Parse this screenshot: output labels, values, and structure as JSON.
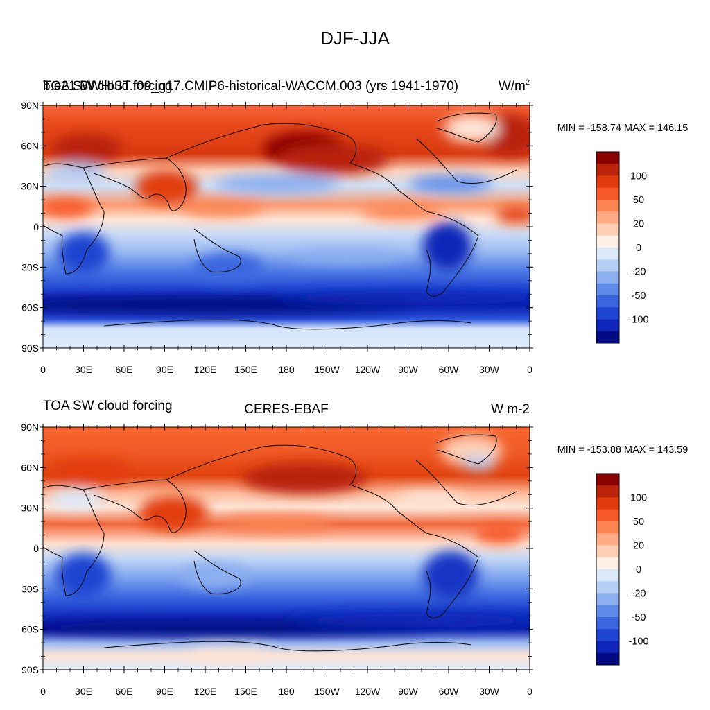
{
  "figure_title": "DJF-JJA",
  "panels": [
    {
      "id": "model",
      "left_title": "TOA SW cloud forcing",
      "left_title_overlap": "b.e21.BWHIST.f09_g17.CMIP6-historical-WACCM.003 (yrs 1941-1970)",
      "center_title": "",
      "right_title": "W/m",
      "right_title_sup": "2",
      "stats": "MIN = -158.74  MAX = 146.15"
    },
    {
      "id": "obs",
      "left_title": "TOA SW cloud forcing",
      "left_title_overlap": "",
      "center_title": "CERES-EBAF",
      "right_title": "W m-2",
      "right_title_sup": "",
      "stats": "MIN = -153.88  MAX = 143.59"
    }
  ],
  "lat_labels": [
    "90N",
    "60N",
    "30N",
    "0",
    "30S",
    "60S",
    "90S"
  ],
  "lon_labels": [
    "0",
    "30E",
    "60E",
    "90E",
    "120E",
    "150E",
    "180",
    "150W",
    "120W",
    "90W",
    "60W",
    "30W",
    "0"
  ],
  "colorbar": {
    "labels": [
      "100",
      "50",
      "20",
      "0",
      "-20",
      "-50",
      "-100"
    ],
    "colors": [
      "#8b0000",
      "#b8230a",
      "#e23c0e",
      "#f75a2a",
      "#fb8555",
      "#fdab84",
      "#fdd0b6",
      "#fff1e6",
      "#dce9fa",
      "#b6cff5",
      "#8caff0",
      "#5f8be8",
      "#3a66e0",
      "#1f44d2",
      "#0f25b8",
      "#000a80"
    ]
  }
}
